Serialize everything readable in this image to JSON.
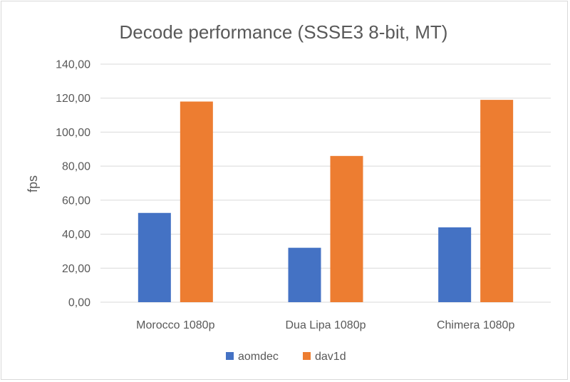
{
  "chart_data": {
    "type": "bar",
    "title": "Decode performance (SSSE3 8-bit, MT)",
    "xlabel": "",
    "ylabel": "fps",
    "categories": [
      "Morocco 1080p",
      "Dua Lipa 1080p",
      "Chimera 1080p"
    ],
    "series": [
      {
        "name": "aomdec",
        "color": "#4472c4",
        "values": [
          52.5,
          32.0,
          44.0
        ]
      },
      {
        "name": "dav1d",
        "color": "#ed7d31",
        "values": [
          118.0,
          86.0,
          119.0
        ]
      }
    ],
    "ylim": [
      0,
      140
    ],
    "yticks": [
      "0,00",
      "20,00",
      "40,00",
      "60,00",
      "80,00",
      "100,00",
      "120,00",
      "140,00"
    ],
    "grid": true,
    "legend": "bottom",
    "colors": {
      "gridline": "#d9d9d9",
      "text": "#595959"
    }
  }
}
